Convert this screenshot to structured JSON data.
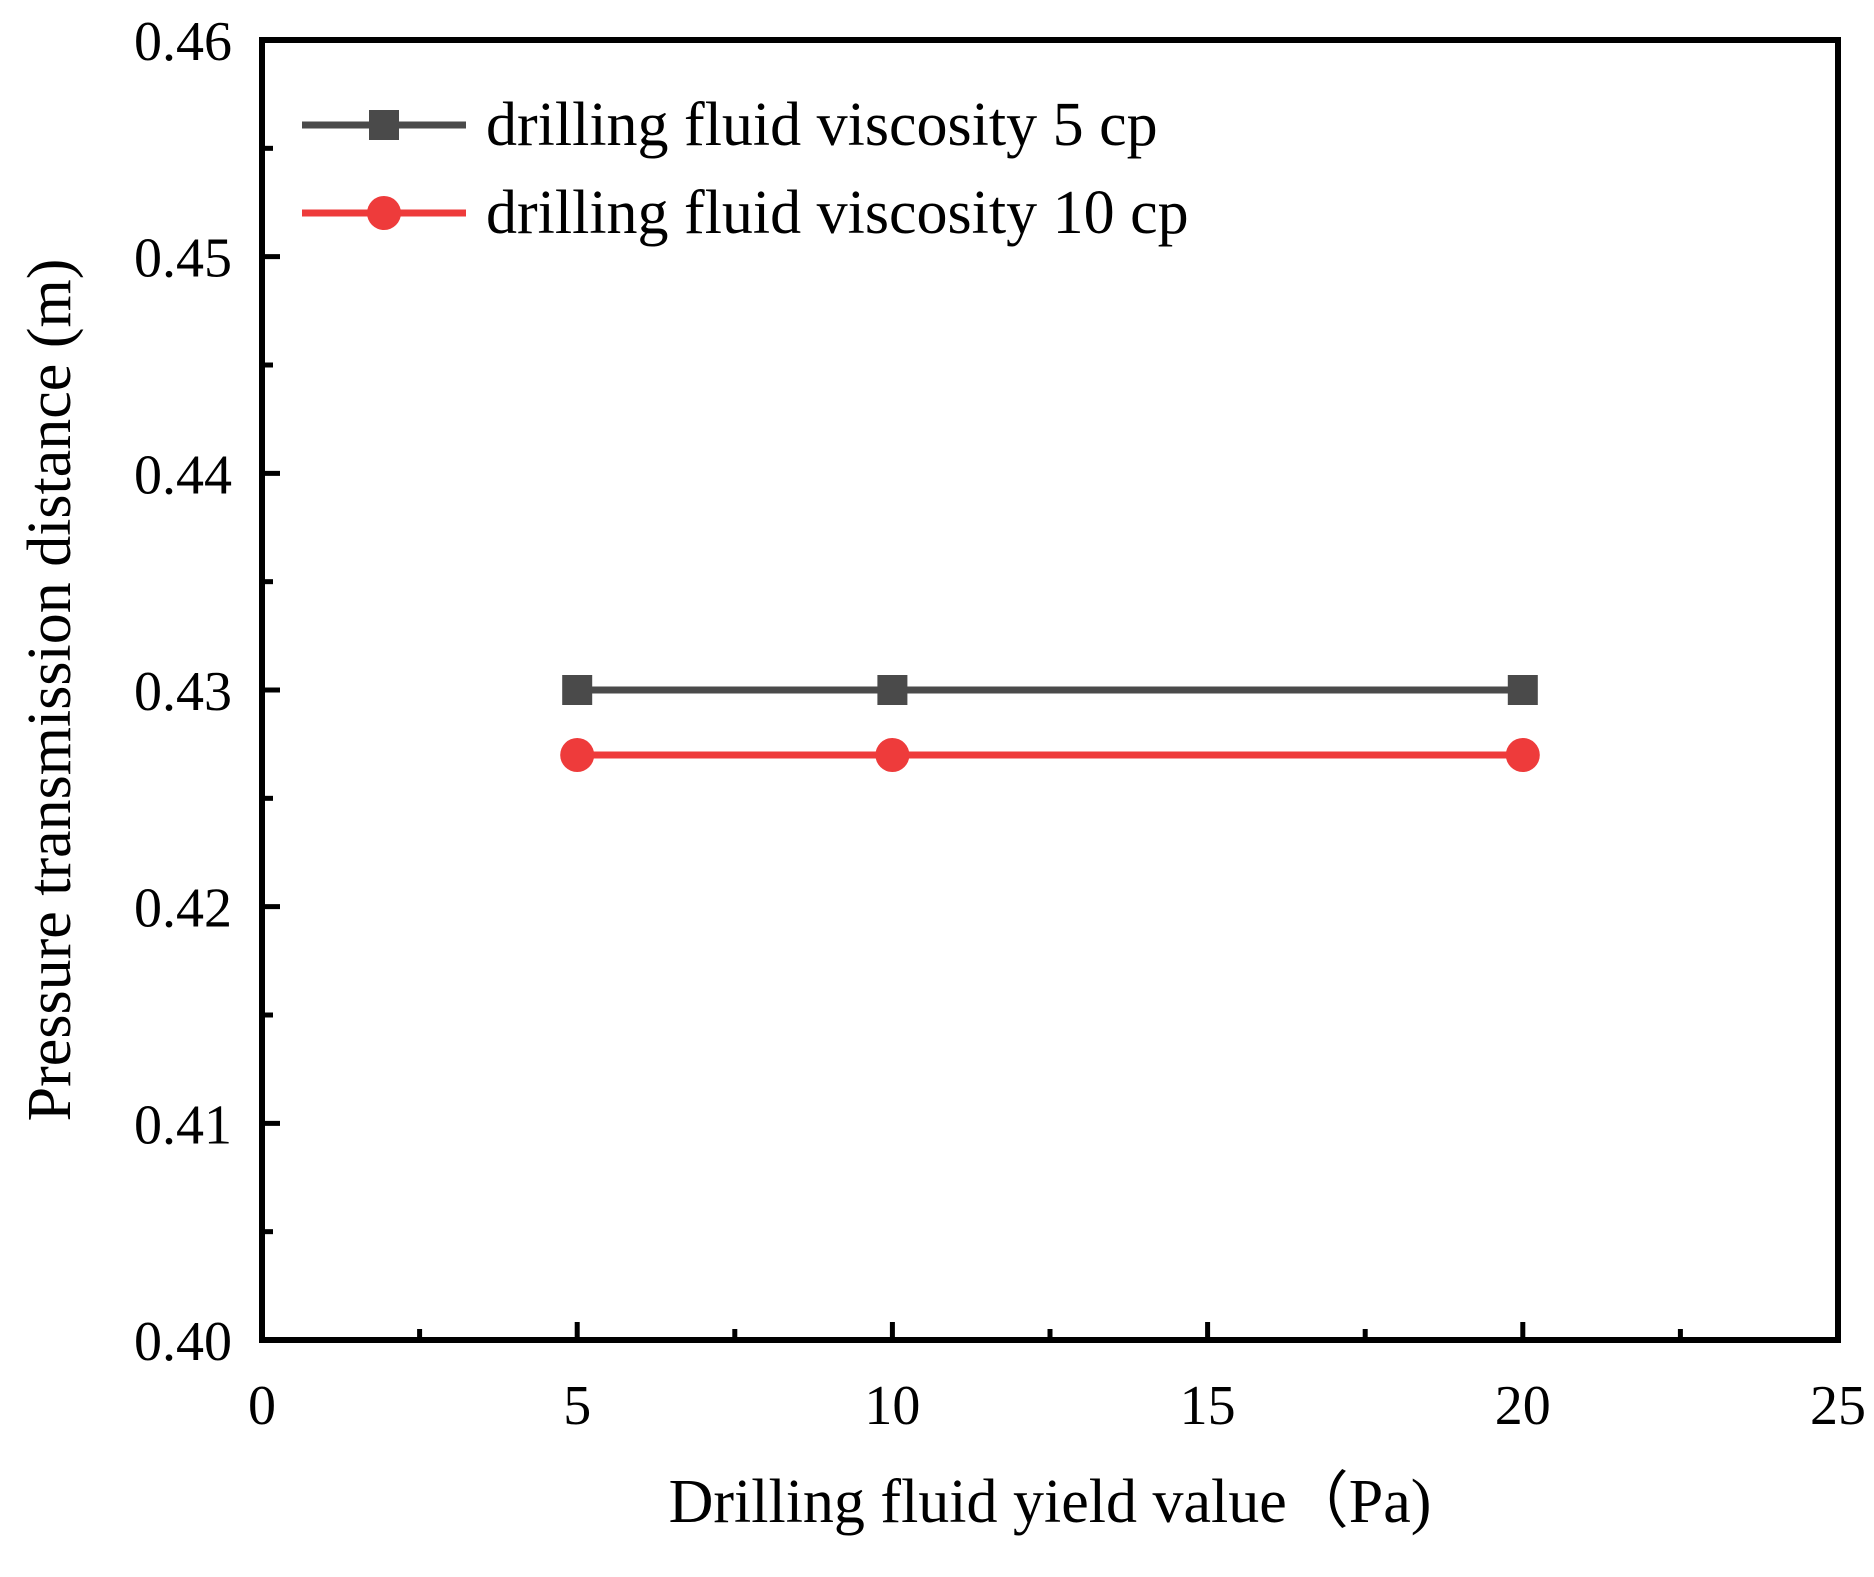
{
  "chart_data": {
    "type": "line",
    "title": "",
    "xlabel": "Drilling fluid yield  value（Pa)",
    "ylabel": "Pressure transmission distance (m)",
    "xlim": [
      0,
      25
    ],
    "ylim": [
      0.4,
      0.46
    ],
    "x_ticks": [
      0,
      5,
      10,
      15,
      20,
      25
    ],
    "x_tick_labels": [
      "0",
      "5",
      "10",
      "15",
      "20",
      "25"
    ],
    "y_ticks": [
      0.4,
      0.41,
      0.42,
      0.43,
      0.44,
      0.45,
      0.46
    ],
    "y_tick_labels": [
      "0.40",
      "0.41",
      "0.42",
      "0.43",
      "0.44",
      "0.45",
      "0.46"
    ],
    "grid": false,
    "legend_position": "top-left",
    "series": [
      {
        "name": "drilling fluid viscosity 5 cp",
        "color": "#4a4a4a",
        "marker": "square",
        "x": [
          5,
          10,
          20
        ],
        "y": [
          0.43,
          0.43,
          0.43
        ]
      },
      {
        "name": "drilling fluid viscosity 10 cp",
        "color": "#ee3b3b",
        "marker": "circle",
        "x": [
          5,
          10,
          20
        ],
        "y": [
          0.427,
          0.427,
          0.427
        ]
      }
    ]
  }
}
